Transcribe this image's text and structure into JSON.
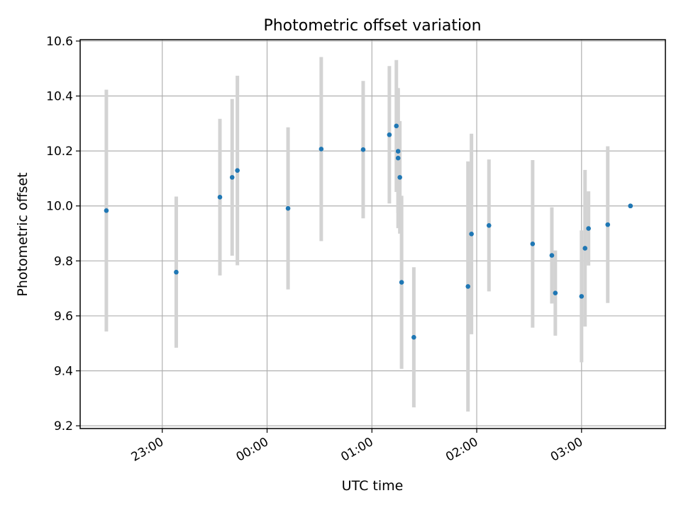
{
  "chart_data": {
    "type": "scatter",
    "title": "Photometric offset variation",
    "xlabel": "UTC time",
    "ylabel": "Photometric offset",
    "grid": true,
    "xlim": [
      "22:13",
      "03:48"
    ],
    "ylim": [
      9.19,
      10.605
    ],
    "x_ticks": [
      "23:00",
      "00:00",
      "01:00",
      "02:00",
      "03:00"
    ],
    "y_ticks": [
      "9.2",
      "9.4",
      "9.6",
      "9.8",
      "10.0",
      "10.2",
      "10.4",
      "10.6"
    ],
    "colors": {
      "point": "#1f77b4",
      "errorbar": "#d3d3d3"
    },
    "series": [
      {
        "x": [
          "22:28",
          "23:08",
          "23:40",
          "23:33",
          "23:43",
          "00:12",
          "00:31",
          "00:55",
          "01:10",
          "01:14",
          "01:15",
          "01:15",
          "01:16",
          "01:17",
          "01:24",
          "01:55",
          "01:57",
          "02:07",
          "02:32",
          "02:43",
          "02:45",
          "03:00",
          "03:02",
          "03:04",
          "03:15",
          "03:28",
          "03:28"
        ],
        "y": [
          9.983,
          9.759,
          10.104,
          10.032,
          10.129,
          9.991,
          10.207,
          10.205,
          10.259,
          10.291,
          10.199,
          10.174,
          10.104,
          9.722,
          9.522,
          9.707,
          9.898,
          9.929,
          9.862,
          9.82,
          9.683,
          9.671,
          9.846,
          9.918,
          9.932,
          10.0,
          10.0
        ],
        "yerr": [
          0.44,
          0.275,
          0.285,
          0.285,
          0.345,
          0.295,
          0.335,
          0.25,
          0.25,
          0.24,
          0.225,
          0.255,
          0.205,
          0.315,
          0.255,
          0.455,
          0.365,
          0.24,
          0.305,
          0.175,
          0.155,
          0.24,
          0.285,
          0.135,
          0.285,
          0.0,
          0.0
        ]
      }
    ]
  }
}
